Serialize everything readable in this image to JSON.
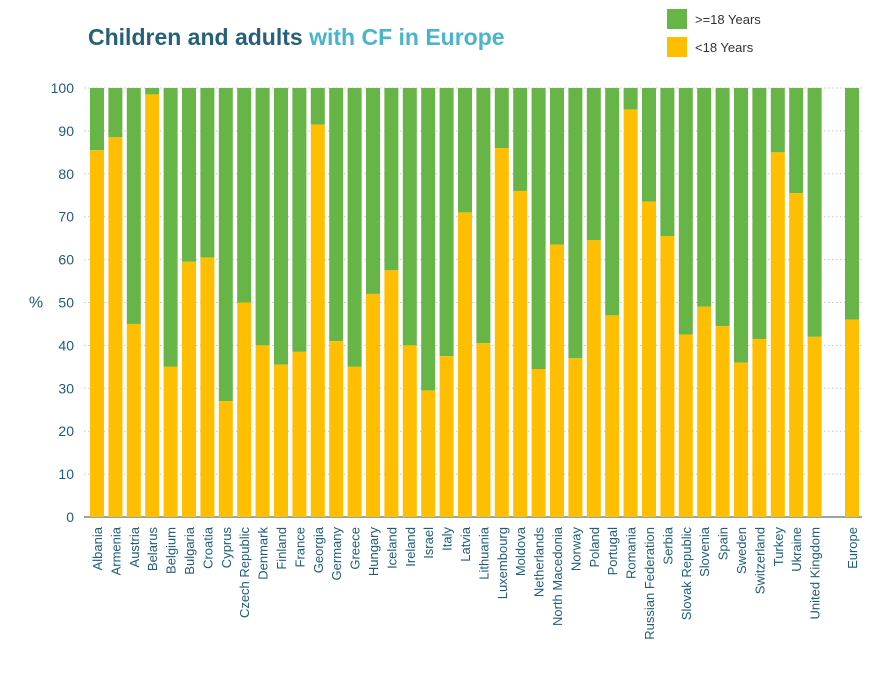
{
  "title": {
    "part1": "Children and adults",
    "part2": "with CF in Europe"
  },
  "colors": {
    "adult": "#66b546",
    "child": "#ffbf00",
    "title_dark": "#25617a",
    "title_light": "#4ab4cc",
    "axis_text": "#1f5c7a"
  },
  "legend": [
    {
      "label": ">=18 Years",
      "color": "#66b546"
    },
    {
      "label": "<18 Years",
      "color": "#ffbf00"
    }
  ],
  "chart_data": {
    "type": "bar",
    "stacked": true,
    "ylabel": "%",
    "ylim": [
      0,
      100
    ],
    "yticks": [
      0,
      10,
      20,
      30,
      40,
      50,
      60,
      70,
      80,
      90,
      100
    ],
    "grid": true,
    "categories": [
      "Albania",
      "Armenia",
      "Austria",
      "Belarus",
      "Belgium",
      "Bulgaria",
      "Croatia",
      "Cyprus",
      "Czech Republic",
      "Denmark",
      "Finland",
      "France",
      "Georgia",
      "Germany",
      "Greece",
      "Hungary",
      "Iceland",
      "Ireland",
      "Israel",
      "Italy",
      "Latvia",
      "Lithuania",
      "Luxembourg",
      "Moldova",
      "Netherlands",
      "North Macedonia",
      "Norway",
      "Poland",
      "Portugal",
      "Romania",
      "Russian Federation",
      "Serbia",
      "Slovak Republic",
      "Slovenia",
      "Spain",
      "Sweden",
      "Switzerland",
      "Turkey",
      "Ukraine",
      "United Kingdom",
      "Europe"
    ],
    "series": [
      {
        "name": "<18 Years",
        "values": [
          85.5,
          88.5,
          45,
          98.5,
          35,
          59.5,
          60.5,
          27,
          50,
          40,
          35.5,
          38.5,
          91.5,
          41,
          35,
          52,
          57.5,
          40,
          29.5,
          37.5,
          71,
          40.5,
          86,
          76,
          34.5,
          63.5,
          37,
          64.5,
          47,
          95,
          73.5,
          65.5,
          42.5,
          49,
          44.5,
          36,
          41.5,
          85,
          75.5,
          42,
          46
        ]
      },
      {
        "name": ">=18 Years",
        "values": [
          14.5,
          11.5,
          55,
          1.5,
          65,
          40.5,
          39.5,
          73,
          50,
          60,
          64.5,
          61.5,
          8.5,
          59,
          65,
          48,
          42.5,
          60,
          70.5,
          62.5,
          29,
          59.5,
          14,
          24,
          65.5,
          36.5,
          63,
          35.5,
          53,
          5,
          26.5,
          34.5,
          57.5,
          51,
          55.5,
          64,
          58.5,
          15,
          24.5,
          58,
          54
        ]
      }
    ]
  }
}
